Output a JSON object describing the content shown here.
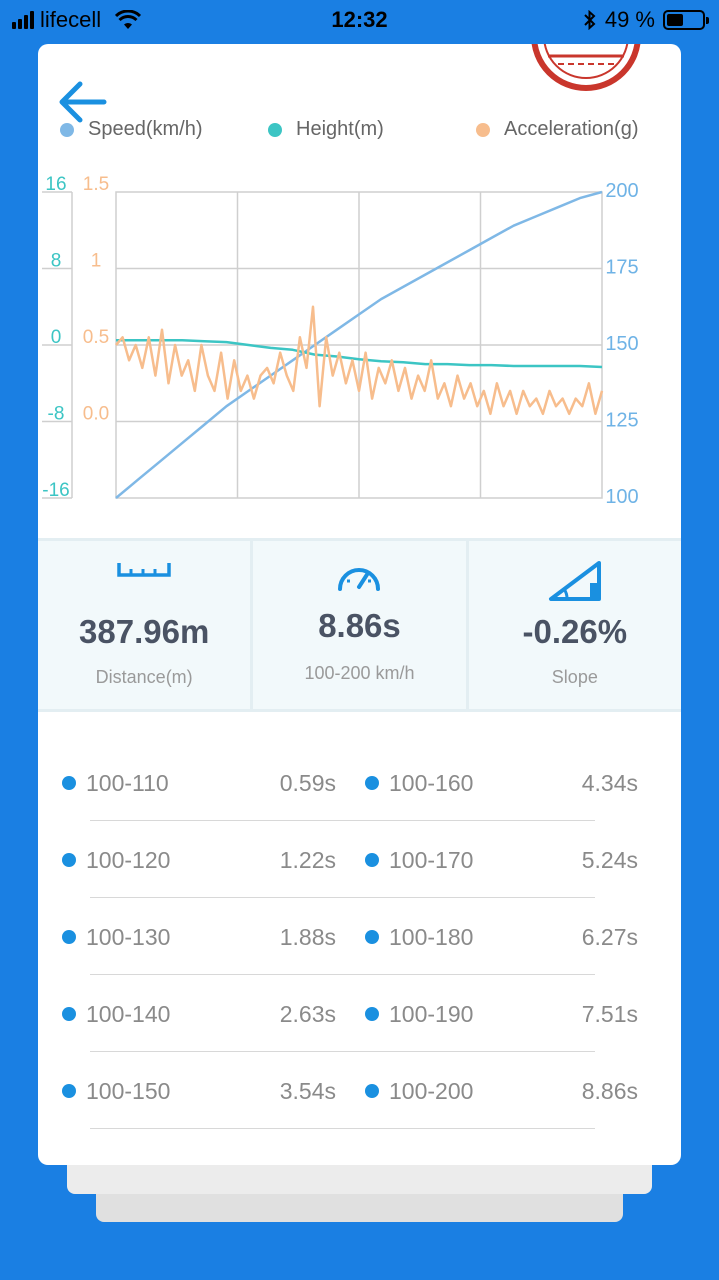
{
  "status": {
    "carrier": "lifecell",
    "time": "12:32",
    "battery": "49 %"
  },
  "legend": [
    {
      "label": "Speed(km/h)",
      "color": "#7fb8e6"
    },
    {
      "label": "Height(m)",
      "color": "#3cc5c4"
    },
    {
      "label": "Acceleration(g)",
      "color": "#f7bd8d"
    }
  ],
  "chart_data": {
    "type": "line",
    "axes": {
      "height_ticks": [
        "16",
        "8",
        "0",
        "-8",
        "-16"
      ],
      "accel_ticks": [
        "1.5",
        "1",
        "0.5",
        "0.0"
      ],
      "speed_ticks": [
        "200",
        "175",
        "150",
        "125",
        "100"
      ]
    },
    "height_range": [
      -16,
      16
    ],
    "accel_range": [
      0,
      1.5
    ],
    "speed_range": [
      100,
      200
    ],
    "series": [
      {
        "name": "Speed(km/h)",
        "color": "#7fb8e6",
        "axis": "speed",
        "values": [
          100,
          106,
          112,
          118,
          124,
          130,
          135,
          140,
          145,
          150,
          155,
          160,
          165,
          169,
          173,
          177,
          181,
          185,
          189,
          192,
          195,
          198,
          200
        ]
      },
      {
        "name": "Height(m)",
        "color": "#3cc5c4",
        "axis": "height",
        "values": [
          0.5,
          0.5,
          0.5,
          0.5,
          0.4,
          0.3,
          0.0,
          -0.3,
          -0.5,
          -1.0,
          -1.2,
          -1.5,
          -1.7,
          -1.8,
          -2.0,
          -2.0,
          -2.1,
          -2.1,
          -2.2,
          -2.2,
          -2.2,
          -2.2,
          -2.3
        ]
      },
      {
        "name": "Acceleration(g)",
        "color": "#f7bd8d",
        "axis": "accel",
        "values": [
          0.5,
          0.55,
          0.4,
          0.5,
          0.35,
          0.55,
          0.3,
          0.6,
          0.25,
          0.5,
          0.3,
          0.4,
          0.2,
          0.5,
          0.3,
          0.2,
          0.45,
          0.15,
          0.4,
          0.2,
          0.3,
          0.15,
          0.3,
          0.35,
          0.25,
          0.45,
          0.3,
          0.2,
          0.55,
          0.35,
          0.75,
          0.1,
          0.55,
          0.3,
          0.45,
          0.25,
          0.4,
          0.2,
          0.45,
          0.15,
          0.35,
          0.25,
          0.4,
          0.2,
          0.35,
          0.15,
          0.3,
          0.2,
          0.4,
          0.15,
          0.25,
          0.1,
          0.3,
          0.15,
          0.25,
          0.1,
          0.2,
          0.05,
          0.25,
          0.1,
          0.2,
          0.05,
          0.2,
          0.1,
          0.15,
          0.05,
          0.2,
          0.1,
          0.15,
          0.05,
          0.15,
          0.1,
          0.25,
          0.05,
          0.2
        ]
      }
    ]
  },
  "stats": [
    {
      "icon": "ruler-icon",
      "value": "387.96m",
      "label": "Distance(m)"
    },
    {
      "icon": "speedometer-icon",
      "value": "8.86s",
      "label": "100-200 km/h"
    },
    {
      "icon": "slope-icon",
      "value": "-0.26%",
      "label": "Slope"
    }
  ],
  "times": [
    {
      "left_label": "100-110",
      "left_value": "0.59s",
      "right_label": "100-160",
      "right_value": "4.34s"
    },
    {
      "left_label": "100-120",
      "left_value": "1.22s",
      "right_label": "100-170",
      "right_value": "5.24s"
    },
    {
      "left_label": "100-130",
      "left_value": "1.88s",
      "right_label": "100-180",
      "right_value": "6.27s"
    },
    {
      "left_label": "100-140",
      "left_value": "2.63s",
      "right_label": "100-190",
      "right_value": "7.51s"
    },
    {
      "left_label": "100-150",
      "left_value": "3.54s",
      "right_label": "100-200",
      "right_value": "8.86s"
    }
  ]
}
